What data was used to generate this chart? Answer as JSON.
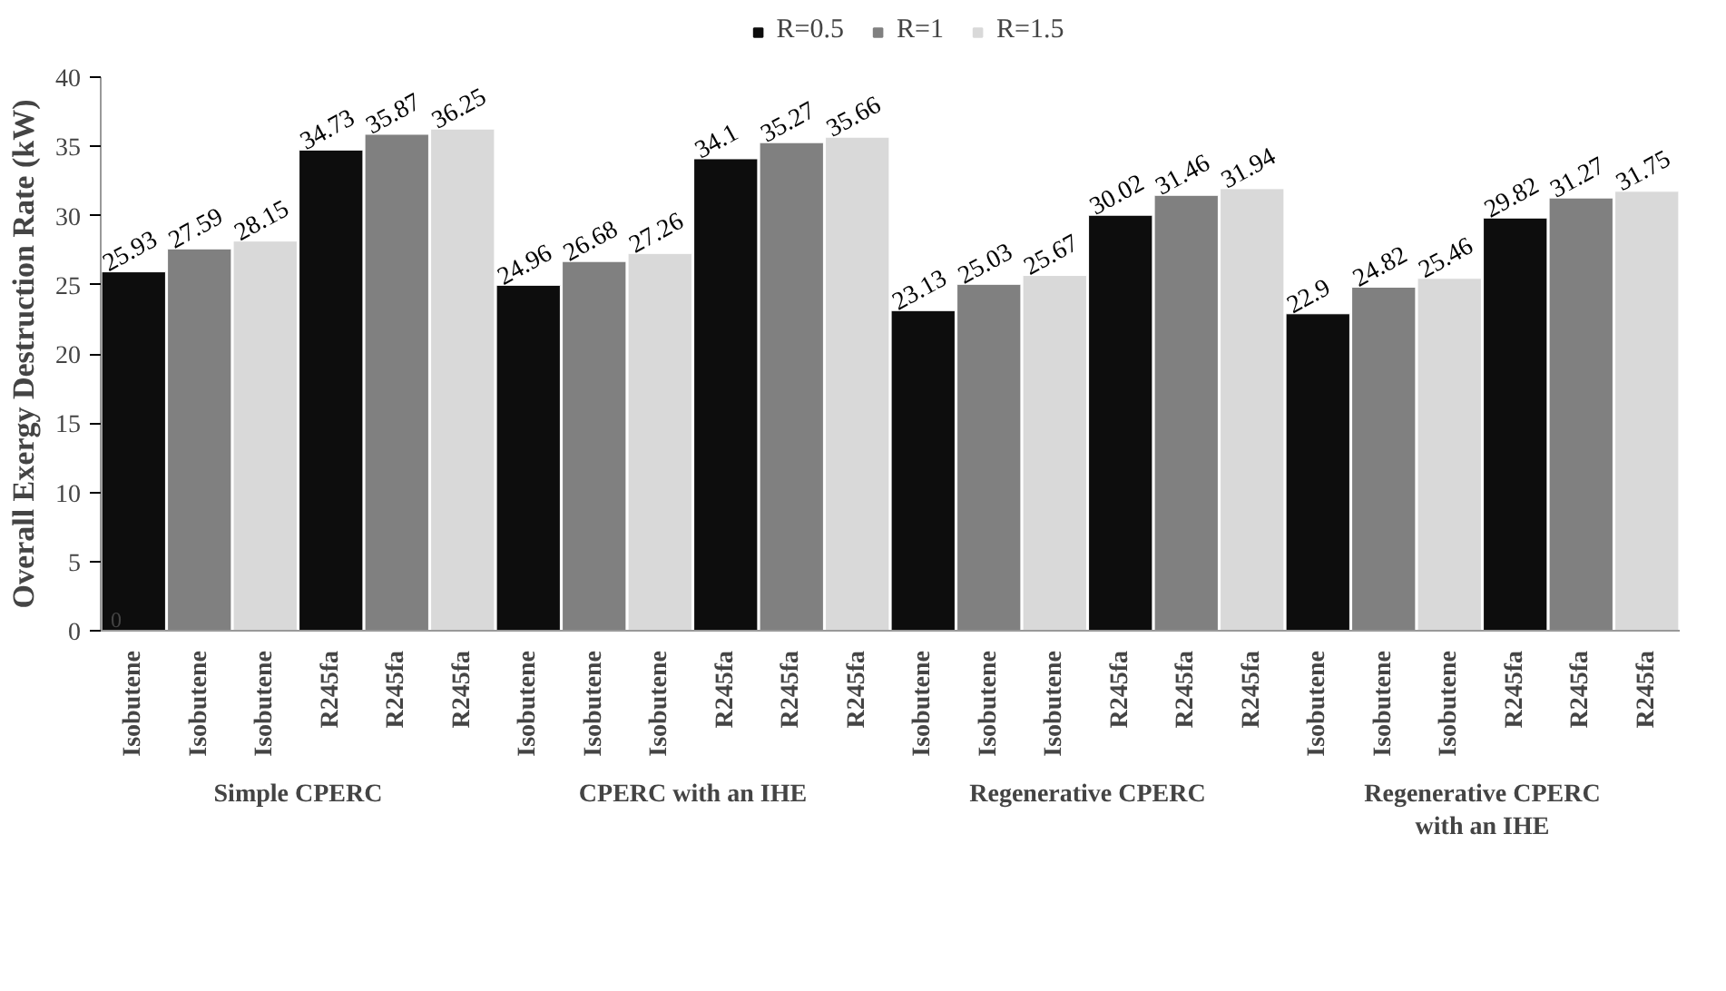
{
  "chart_data": {
    "type": "bar",
    "ylabel": "Overall Exergy Destruction Rate (kW)",
    "categories": [
      "Isobutene",
      "Isobutene",
      "Isobutene",
      "R245fa",
      "R245fa",
      "R245fa",
      "Isobutene",
      "Isobutene",
      "Isobutene",
      "R245fa",
      "R245fa",
      "R245fa",
      "Isobutene",
      "Isobutene",
      "Isobutene",
      "R245fa",
      "R245fa",
      "R245fa",
      "Isobutene",
      "Isobutene",
      "Isobutene",
      "R245fa",
      "R245fa",
      "R245fa"
    ],
    "series": [
      {
        "name": "R=0.5",
        "color": "#0d0d0d",
        "values": [
          25.93,
          null,
          null,
          34.73,
          null,
          null,
          24.96,
          null,
          null,
          34.1,
          null,
          null,
          23.13,
          null,
          null,
          30.02,
          null,
          null,
          22.9,
          null,
          null,
          29.82,
          null,
          null
        ]
      },
      {
        "name": "R=1",
        "color": "#808080",
        "values": [
          null,
          27.59,
          null,
          null,
          35.87,
          null,
          null,
          26.68,
          null,
          null,
          35.27,
          null,
          null,
          25.03,
          null,
          null,
          31.46,
          null,
          null,
          24.82,
          null,
          null,
          31.27,
          null
        ]
      },
      {
        "name": "R=1.5",
        "color": "#d9d9d9",
        "values": [
          null,
          null,
          28.15,
          null,
          null,
          36.25,
          null,
          null,
          27.26,
          null,
          null,
          35.66,
          null,
          null,
          25.67,
          null,
          null,
          31.94,
          null,
          null,
          25.46,
          null,
          null,
          31.75
        ]
      }
    ],
    "annotations": [
      "Simple CPERC",
      "CPERC with an IHE",
      "Regenerative CPERC",
      "Regenerative CPERC\nwith an IHE",
      "0"
    ],
    "ylim": [
      0,
      40
    ],
    "yticks": [
      0,
      5,
      10,
      15,
      20,
      25,
      30,
      35,
      40
    ],
    "data_labels": true,
    "grid": false,
    "legend": "top"
  }
}
